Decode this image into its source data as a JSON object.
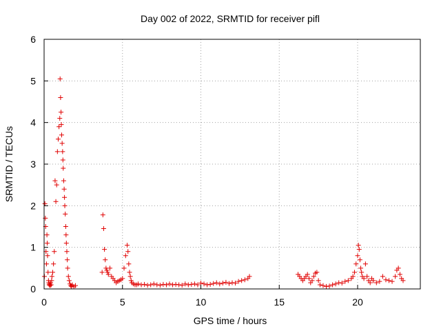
{
  "chart_data": {
    "type": "scatter",
    "title": "Day 002 of 2022, SRMTID for receiver pifl",
    "xlabel": "GPS time / hours",
    "ylabel": "SRMTID / TECUs",
    "xlim": [
      0,
      24
    ],
    "ylim": [
      0,
      6
    ],
    "xticks": [
      0,
      5,
      10,
      15,
      20
    ],
    "yticks": [
      0,
      1,
      2,
      3,
      4,
      5,
      6
    ],
    "grid": true,
    "marker": "plus",
    "series_color": "#e00000",
    "x": [
      0.02,
      0.05,
      0.08,
      0.1,
      0.12,
      0.15,
      0.18,
      0.2,
      0.22,
      0.25,
      0.28,
      0.3,
      0.32,
      0.35,
      0.38,
      0.4,
      0.42,
      0.45,
      0.48,
      0.5,
      0.55,
      0.6,
      0.65,
      0.7,
      0.75,
      0.8,
      0.85,
      0.9,
      0.95,
      1.0,
      1.02,
      1.05,
      1.08,
      1.1,
      1.12,
      1.15,
      1.18,
      1.2,
      1.22,
      1.25,
      1.28,
      1.3,
      1.32,
      1.35,
      1.38,
      1.4,
      1.42,
      1.45,
      1.48,
      1.5,
      1.55,
      1.6,
      1.65,
      1.7,
      1.75,
      1.8,
      1.9,
      2.0,
      3.7,
      3.75,
      3.8,
      3.85,
      3.9,
      3.95,
      4.0,
      4.05,
      4.1,
      4.2,
      4.3,
      4.4,
      4.5,
      4.6,
      4.7,
      4.8,
      4.9,
      5.0,
      5.1,
      5.2,
      5.3,
      5.35,
      5.4,
      5.45,
      5.5,
      5.55,
      5.6,
      5.7,
      5.8,
      5.9,
      6.0,
      6.2,
      6.4,
      6.6,
      6.8,
      7.0,
      7.2,
      7.4,
      7.6,
      7.8,
      8.0,
      8.2,
      8.4,
      8.6,
      8.8,
      9.0,
      9.2,
      9.4,
      9.6,
      9.8,
      10.0,
      10.2,
      10.4,
      10.6,
      10.8,
      11.0,
      11.2,
      11.4,
      11.6,
      11.8,
      12.0,
      12.2,
      12.4,
      12.6,
      12.8,
      13.0,
      13.1,
      16.2,
      16.3,
      16.4,
      16.5,
      16.6,
      16.7,
      16.8,
      16.9,
      17.0,
      17.1,
      17.2,
      17.3,
      17.4,
      17.5,
      17.6,
      17.8,
      18.0,
      18.2,
      18.4,
      18.6,
      18.8,
      19.0,
      19.2,
      19.4,
      19.6,
      19.7,
      19.8,
      19.9,
      20.0,
      20.05,
      20.1,
      20.15,
      20.2,
      20.25,
      20.3,
      20.4,
      20.5,
      20.6,
      20.7,
      20.8,
      20.9,
      21.0,
      21.2,
      21.4,
      21.6,
      21.8,
      22.0,
      22.2,
      22.4,
      22.5,
      22.6,
      22.7,
      22.8,
      22.9
    ],
    "y": [
      0.3,
      2.05,
      1.7,
      1.5,
      0.9,
      0.6,
      1.3,
      1.1,
      0.8,
      0.4,
      0.2,
      0.15,
      0.1,
      0.12,
      0.08,
      0.1,
      0.15,
      0.1,
      0.2,
      0.3,
      0.4,
      0.6,
      0.9,
      2.6,
      2.1,
      2.5,
      3.3,
      3.6,
      3.9,
      4.1,
      5.05,
      4.6,
      4.25,
      3.95,
      3.7,
      3.5,
      3.3,
      3.1,
      2.9,
      2.6,
      2.4,
      2.2,
      2.0,
      1.8,
      1.5,
      1.3,
      1.1,
      0.9,
      0.7,
      0.5,
      0.3,
      0.2,
      0.12,
      0.08,
      0.06,
      0.1,
      0.05,
      0.08,
      0.4,
      1.78,
      1.45,
      0.95,
      0.7,
      0.5,
      0.45,
      0.4,
      0.35,
      0.5,
      0.3,
      0.25,
      0.2,
      0.15,
      0.18,
      0.2,
      0.22,
      0.25,
      0.5,
      0.8,
      1.05,
      0.9,
      0.6,
      0.4,
      0.3,
      0.2,
      0.15,
      0.12,
      0.1,
      0.1,
      0.12,
      0.1,
      0.11,
      0.09,
      0.1,
      0.12,
      0.1,
      0.09,
      0.11,
      0.1,
      0.12,
      0.1,
      0.11,
      0.1,
      0.09,
      0.12,
      0.1,
      0.11,
      0.12,
      0.1,
      0.14,
      0.12,
      0.1,
      0.11,
      0.13,
      0.15,
      0.12,
      0.14,
      0.16,
      0.13,
      0.15,
      0.14,
      0.18,
      0.2,
      0.22,
      0.25,
      0.3,
      0.35,
      0.3,
      0.25,
      0.2,
      0.25,
      0.3,
      0.35,
      0.25,
      0.15,
      0.2,
      0.3,
      0.38,
      0.4,
      0.2,
      0.1,
      0.08,
      0.06,
      0.07,
      0.1,
      0.12,
      0.15,
      0.14,
      0.18,
      0.2,
      0.25,
      0.3,
      0.4,
      0.6,
      0.8,
      1.05,
      0.95,
      0.7,
      0.5,
      0.4,
      0.3,
      0.25,
      0.6,
      0.3,
      0.2,
      0.15,
      0.25,
      0.2,
      0.15,
      0.18,
      0.3,
      0.22,
      0.2,
      0.18,
      0.3,
      0.45,
      0.5,
      0.35,
      0.25,
      0.2
    ]
  }
}
